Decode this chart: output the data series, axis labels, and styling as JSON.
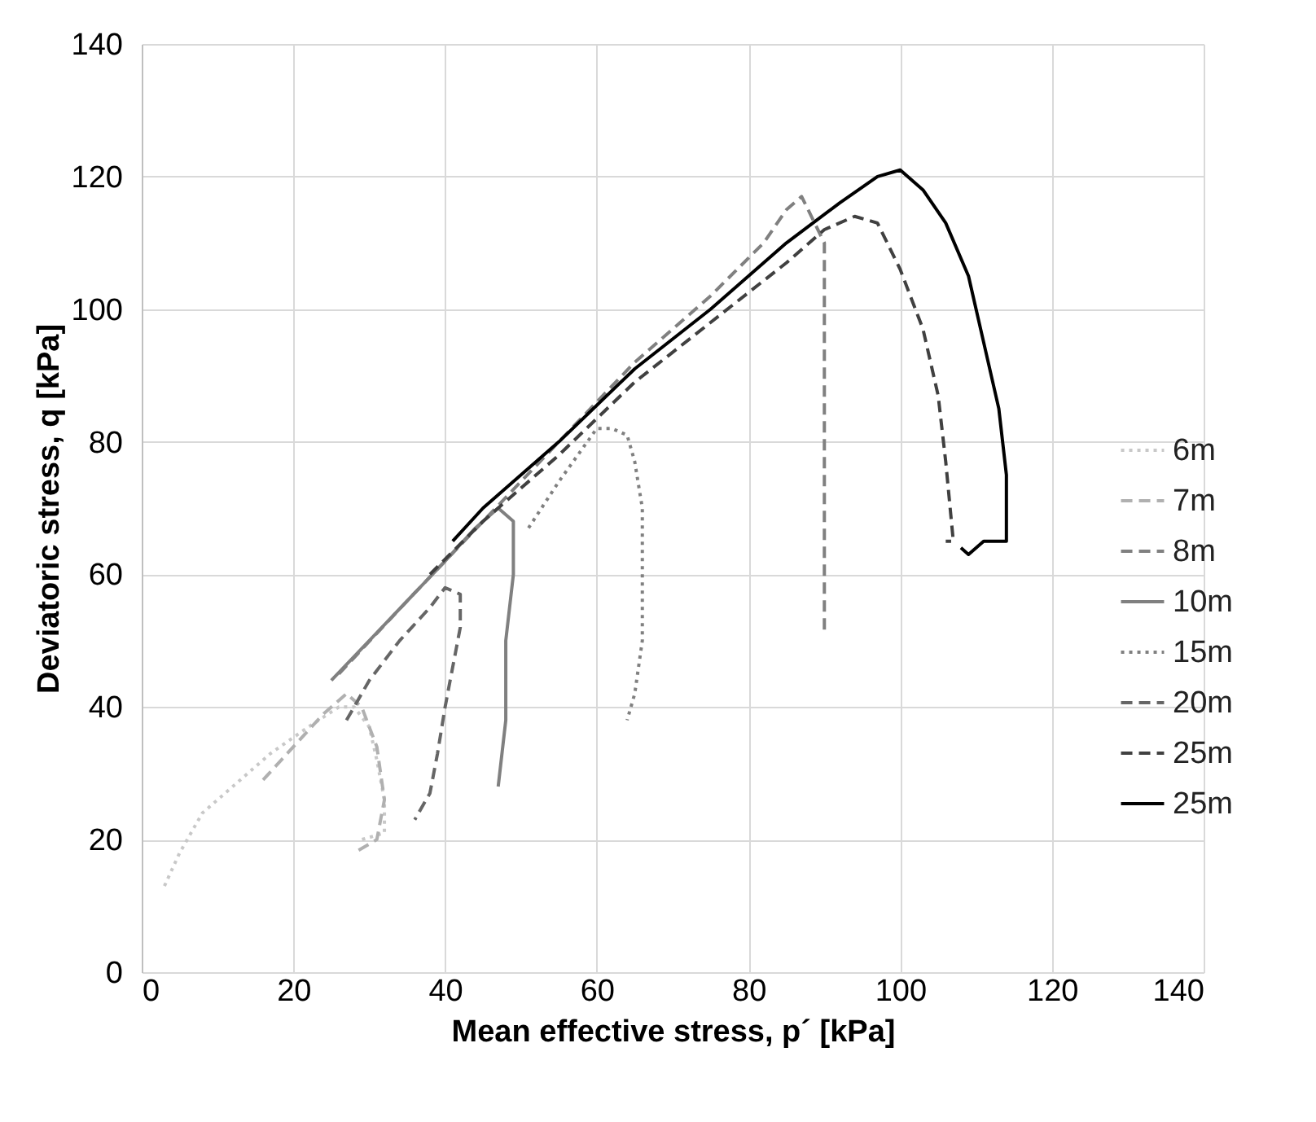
{
  "chart_data": {
    "type": "line",
    "xlabel": "Mean effective stress, p´ [kPa]",
    "ylabel": "Deviatoric stress, q [kPa]",
    "xlim": [
      0,
      140
    ],
    "xticks": [
      0,
      20,
      40,
      60,
      80,
      100,
      120,
      140
    ],
    "ylim": [
      0,
      140
    ],
    "yticks": [
      0,
      20,
      40,
      60,
      80,
      100,
      120,
      140
    ],
    "grid": true,
    "legend": "right",
    "series": [
      {
        "name": "6m",
        "color": "#c8c8c8",
        "line_style": "dotted",
        "x": [
          3,
          5,
          8,
          12,
          17,
          22,
          26,
          28,
          30,
          31,
          32,
          32,
          29
        ],
        "values": [
          13,
          18,
          24,
          28,
          33,
          37,
          40,
          40,
          37,
          32,
          26,
          21,
          20
        ]
      },
      {
        "name": "7m",
        "color": "#b0b0b0",
        "line_style": "dashed",
        "x": [
          16,
          20,
          24,
          27,
          29,
          31,
          32,
          31,
          28
        ],
        "values": [
          29,
          34,
          39,
          42,
          40,
          34,
          26,
          20,
          18
        ]
      },
      {
        "name": "8m",
        "color": "#808080",
        "line_style": "dashed",
        "x": [
          26,
          35,
          45,
          55,
          65,
          75,
          82,
          85,
          87,
          90,
          90,
          90,
          90
        ],
        "values": [
          45,
          56,
          68,
          80,
          92,
          102,
          110,
          115,
          117,
          110,
          90,
          70,
          51
        ]
      },
      {
        "name": "10m",
        "color": "#808080",
        "line_style": "solid",
        "x": [
          25,
          30,
          35,
          40,
          44,
          47,
          49,
          49,
          48,
          48,
          47
        ],
        "values": [
          44,
          50,
          56,
          62,
          67,
          70,
          68,
          60,
          50,
          38,
          28
        ]
      },
      {
        "name": "15m",
        "color": "#808080",
        "line_style": "dotted",
        "x": [
          51,
          55,
          60,
          62,
          64,
          65,
          66,
          66,
          66,
          65,
          64
        ],
        "values": [
          67,
          74,
          82,
          82,
          81,
          77,
          70,
          60,
          50,
          42,
          38
        ]
      },
      {
        "name": "20m",
        "color": "#666666",
        "line_style": "dashed",
        "x": [
          27,
          30,
          34,
          38,
          40,
          42,
          42,
          41,
          40,
          39,
          38,
          36
        ],
        "values": [
          38,
          44,
          50,
          55,
          58,
          57,
          52,
          46,
          40,
          33,
          27,
          23
        ]
      },
      {
        "name": "25m",
        "color": "#404040",
        "line_style": "dashed",
        "x": [
          38,
          45,
          55,
          65,
          75,
          85,
          90,
          94,
          97,
          100,
          103,
          105,
          106,
          107,
          106
        ],
        "values": [
          60,
          68,
          78,
          89,
          98,
          107,
          112,
          114,
          113,
          106,
          97,
          87,
          77,
          65,
          65
        ]
      },
      {
        "name": "25m",
        "color": "#000000",
        "line_style": "solid",
        "x": [
          41,
          45,
          55,
          65,
          75,
          85,
          92,
          97,
          100,
          103,
          106,
          109,
          111,
          113,
          114,
          114,
          111,
          109,
          108
        ],
        "values": [
          65,
          70,
          80,
          91,
          100,
          110,
          116,
          120,
          121,
          118,
          113,
          105,
          95,
          85,
          75,
          65,
          65,
          63,
          64
        ]
      }
    ]
  }
}
